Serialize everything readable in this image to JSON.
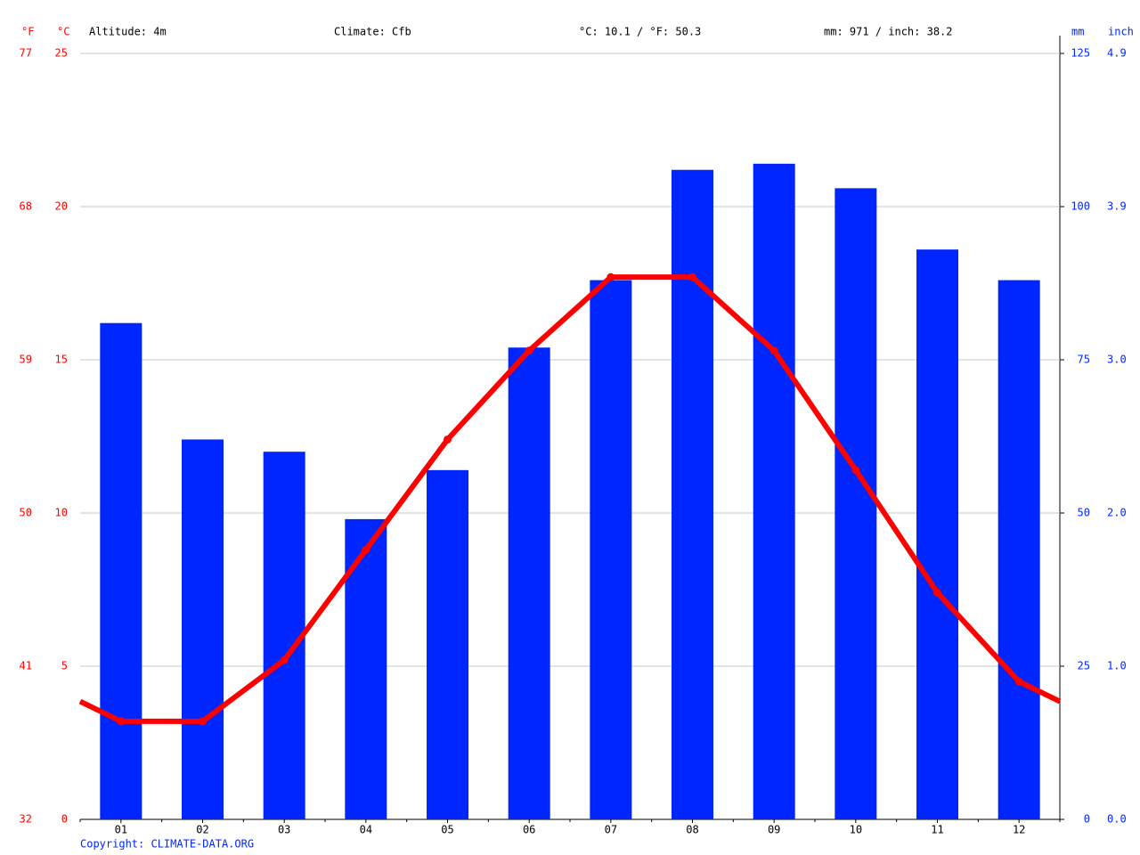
{
  "chart_data": {
    "type": "bar-line",
    "header": {
      "f_unit": "°F",
      "c_unit": "°C",
      "altitude": "Altitude: 4m",
      "climate": "Climate: Cfb",
      "temperature": "°C: 10.1 / °F: 50.3",
      "precipitation": "mm: 971 / inch: 38.2",
      "mm_unit": "mm",
      "inch_unit": "inch"
    },
    "copyright": "Copyright: CLIMATE-DATA.ORG",
    "categories": [
      "01",
      "02",
      "03",
      "04",
      "05",
      "06",
      "07",
      "08",
      "09",
      "10",
      "11",
      "12"
    ],
    "series": [
      {
        "type": "bar",
        "axis": "y2",
        "color": "#0026ff",
        "values": [
          81,
          62,
          60,
          49,
          57,
          77,
          88,
          106,
          107,
          103,
          93,
          88
        ]
      },
      {
        "type": "line",
        "axis": "y",
        "color": "#ff0000",
        "values": [
          3.2,
          3.2,
          5.2,
          8.8,
          12.4,
          15.3,
          17.7,
          17.7,
          15.3,
          11.4,
          7.4,
          4.5
        ]
      }
    ],
    "ylim": [
      0,
      25
    ],
    "yticks": [
      0,
      5,
      10,
      15,
      20,
      25
    ],
    "fticks": [
      {
        "value": 0,
        "label": "32"
      },
      {
        "value": 5,
        "label": "41"
      },
      {
        "value": 10,
        "label": "50"
      },
      {
        "value": 15,
        "label": "59"
      },
      {
        "value": 20,
        "label": "68"
      },
      {
        "value": 25,
        "label": "77"
      }
    ],
    "y2lim": [
      0,
      125
    ],
    "y2ticks": [
      0,
      25,
      50,
      75,
      100,
      125
    ],
    "inchticks": [
      {
        "value": 0,
        "label": "0.0"
      },
      {
        "value": 25,
        "label": "1.0"
      },
      {
        "value": 50,
        "label": "2.0"
      },
      {
        "value": 75,
        "label": "3.0"
      },
      {
        "value": 100,
        "label": "3.9"
      },
      {
        "value": 125,
        "label": "4.9"
      }
    ],
    "grid": true
  }
}
